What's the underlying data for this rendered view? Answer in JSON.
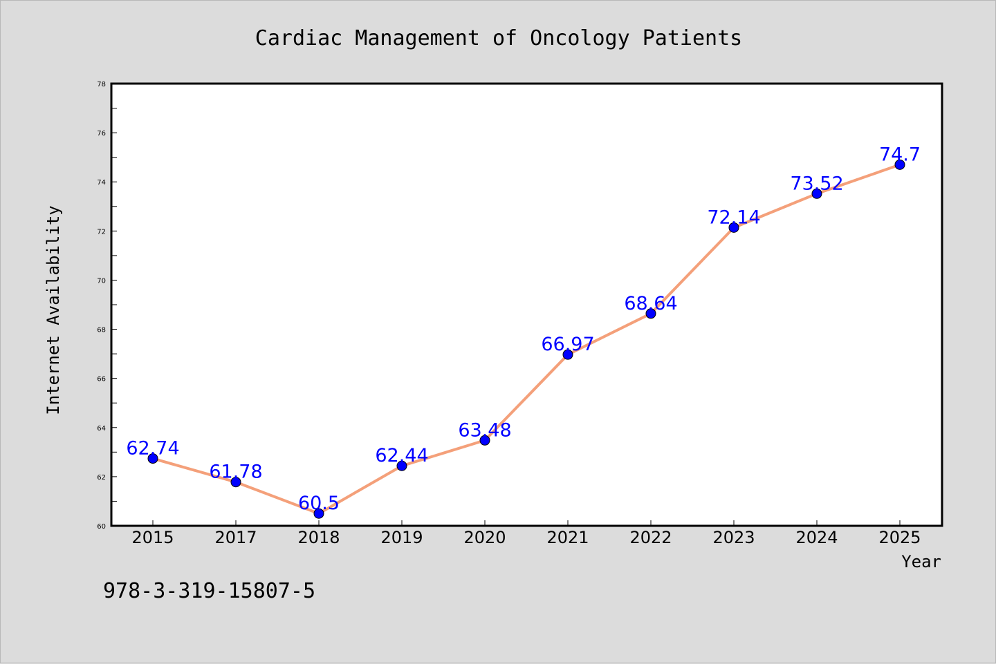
{
  "chart_data": {
    "type": "line",
    "title": "Cardiac Management of Oncology Patients",
    "xlabel": "Year",
    "ylabel": "Internet Availability",
    "categories": [
      "2015",
      "2017",
      "2018",
      "2019",
      "2020",
      "2021",
      "2022",
      "2023",
      "2024",
      "2025"
    ],
    "series": [
      {
        "values": [
          62.74,
          61.78,
          60.5,
          62.44,
          63.48,
          66.97,
          68.64,
          72.14,
          73.52,
          74.7
        ],
        "labels": [
          "62.74",
          "61.78",
          "60.5",
          "62.44",
          "63.48",
          "66.97",
          "68.64",
          "72.14",
          "73.52",
          "74.7"
        ]
      }
    ],
    "ylim": [
      60,
      78
    ],
    "yticks": [
      "60",
      "62",
      "64",
      "66",
      "68",
      "70",
      "72",
      "74",
      "76",
      "78"
    ],
    "grid": false,
    "colors": {
      "line": "#f4a07a",
      "marker": "#0000ff",
      "label": "#0000ff",
      "plot_background": "#ffffff",
      "figure_background": "#dcdcdc"
    }
  },
  "footer": {
    "text": "978-3-319-15807-5"
  }
}
